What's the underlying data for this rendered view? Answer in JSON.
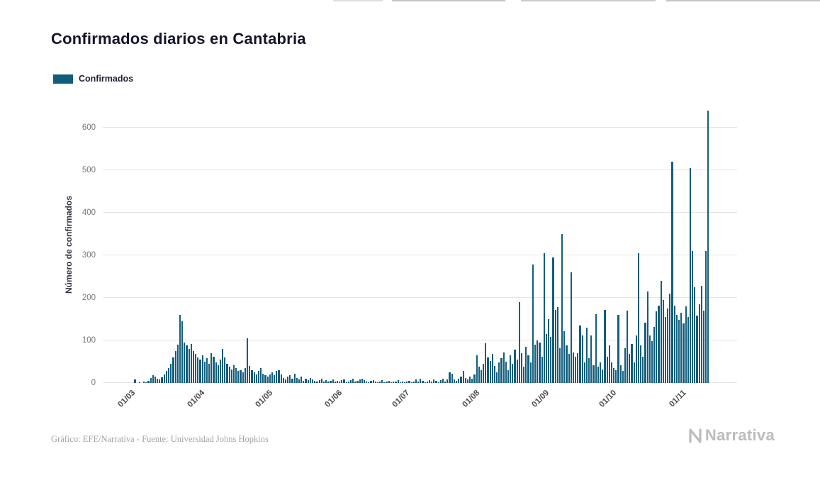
{
  "page": {
    "title": "Confirmados diarios en Cantabria",
    "footer": {
      "source": "Gráfico: EFE/Narrativa - Fuente: Universidad Johns Hopkins",
      "logo_text": "Narrativa"
    },
    "background": "#ffffff"
  },
  "legend": {
    "label": "Confirmados",
    "color": "#125d7c"
  },
  "chart_data": {
    "type": "bar",
    "title": "Confirmados diarios en Cantabria",
    "series_name": "Confirmados",
    "xlabel": "",
    "ylabel": "Número de confirmados",
    "ylim": [
      0,
      650
    ],
    "yticks": [
      0,
      100,
      200,
      300,
      400,
      500,
      600
    ],
    "xtick_labels": [
      "01/03",
      "01/04",
      "01/05",
      "01/06",
      "01/07",
      "01/08",
      "01/09",
      "01/10",
      "01/11"
    ],
    "xtick_indices": [
      12,
      43,
      73,
      104,
      134,
      165,
      196,
      226,
      257
    ],
    "bar_color": "#125d7c",
    "grid": true,
    "legend_position": "top-left",
    "values": [
      0,
      0,
      0,
      0,
      0,
      0,
      0,
      0,
      0,
      0,
      0,
      0,
      0,
      0,
      8,
      0,
      2,
      0,
      3,
      2,
      5,
      12,
      18,
      15,
      10,
      8,
      14,
      20,
      28,
      35,
      45,
      60,
      75,
      90,
      160,
      145,
      95,
      88,
      80,
      92,
      75,
      68,
      60,
      55,
      65,
      50,
      58,
      45,
      70,
      62,
      48,
      42,
      55,
      80,
      60,
      45,
      38,
      32,
      42,
      35,
      28,
      30,
      25,
      35,
      105,
      40,
      30,
      25,
      20,
      28,
      35,
      22,
      18,
      15,
      20,
      25,
      18,
      28,
      30,
      20,
      12,
      8,
      15,
      18,
      10,
      22,
      12,
      8,
      15,
      5,
      10,
      6,
      12,
      8,
      5,
      3,
      6,
      10,
      4,
      6,
      3,
      5,
      8,
      4,
      5,
      3,
      6,
      8,
      2,
      4,
      6,
      10,
      3,
      5,
      8,
      10,
      6,
      3,
      2,
      5,
      7,
      3,
      2,
      4,
      6,
      2,
      3,
      5,
      2,
      4,
      3,
      6,
      2,
      3,
      2,
      3,
      5,
      2,
      4,
      8,
      3,
      10,
      5,
      2,
      4,
      6,
      3,
      8,
      5,
      2,
      6,
      10,
      4,
      8,
      25,
      22,
      8,
      5,
      10,
      15,
      28,
      12,
      8,
      15,
      10,
      20,
      65,
      38,
      30,
      45,
      93,
      60,
      52,
      68,
      40,
      25,
      48,
      58,
      72,
      50,
      30,
      65,
      45,
      78,
      55,
      190,
      70,
      38,
      85,
      65,
      48,
      278,
      90,
      100,
      95,
      62,
      305,
      115,
      150,
      108,
      295,
      172,
      178,
      82,
      350,
      122,
      88,
      68,
      260,
      72,
      62,
      70,
      135,
      112,
      48,
      130,
      58,
      112,
      42,
      162,
      38,
      48,
      32,
      172,
      62,
      88,
      48,
      35,
      30,
      160,
      42,
      28,
      82,
      170,
      68,
      92,
      48,
      112,
      305,
      88,
      62,
      142,
      215,
      112,
      98,
      132,
      168,
      182,
      240,
      195,
      155,
      175,
      210,
      520,
      182,
      160,
      148,
      165,
      140,
      180,
      155,
      505,
      310,
      225,
      158,
      185,
      228,
      170,
      310,
      640
    ]
  }
}
